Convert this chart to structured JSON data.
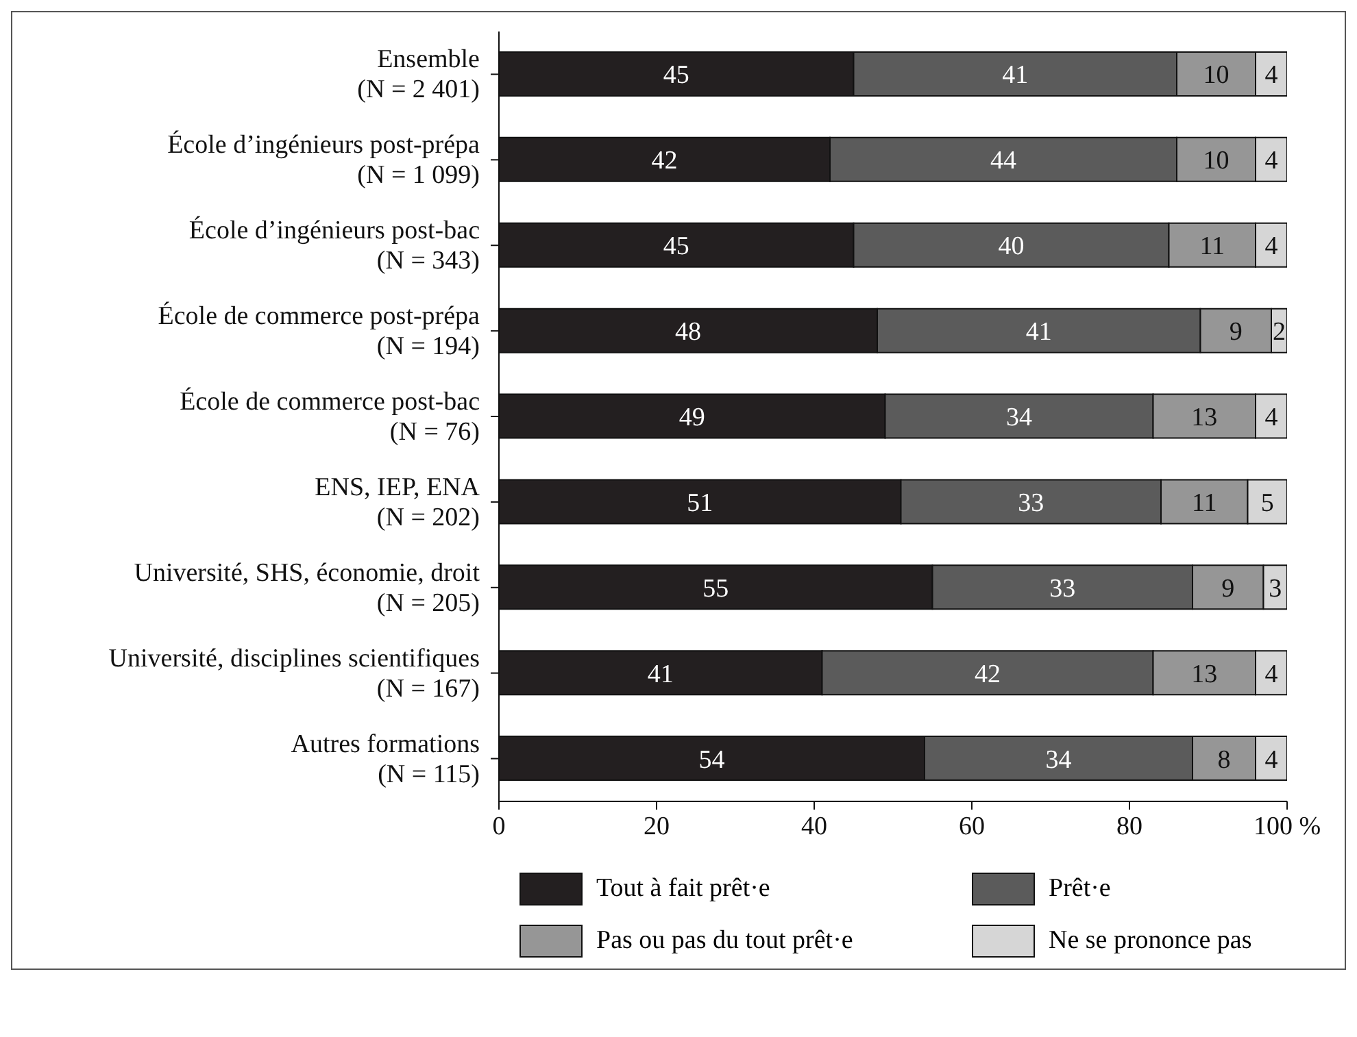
{
  "chart_data": {
    "type": "bar",
    "orientation": "horizontal",
    "stacked": true,
    "data_labels": true,
    "legend": "bottom",
    "categories": [
      "Ensemble\n(N = 2 401)",
      "École d’ingénieurs post-prépa\n(N = 1 099)",
      "École d’ingénieurs post-bac\n(N = 343)",
      "École de commerce post-prépa\n(N = 194)",
      "École de commerce post-bac\n(N = 76)",
      "ENS, IEP, ENA\n(N = 202)",
      "Université, SHS, économie, droit\n(N = 205)",
      "Université, disciplines scientifiques\n(N = 167)",
      "Autres formations\n(N = 115)"
    ],
    "series": [
      {
        "name": "Tout à fait prêt·e",
        "color": "#231f20",
        "values": [
          45,
          42,
          45,
          48,
          49,
          51,
          55,
          41,
          54
        ]
      },
      {
        "name": "Prêt·e",
        "color": "#5b5b5b",
        "values": [
          41,
          44,
          40,
          41,
          34,
          33,
          33,
          42,
          34
        ]
      },
      {
        "name": "Pas ou pas du tout prêt·e",
        "color": "#969696",
        "values": [
          10,
          10,
          11,
          9,
          13,
          11,
          9,
          13,
          8
        ]
      },
      {
        "name": "Ne se prononce pas",
        "color": "#d6d6d6",
        "values": [
          4,
          4,
          4,
          2,
          4,
          5,
          3,
          4,
          4
        ]
      }
    ],
    "xlim": [
      0,
      100
    ],
    "xticks": [
      0,
      20,
      40,
      60,
      80,
      {
        "value": 100,
        "label": "100 %"
      }
    ]
  }
}
